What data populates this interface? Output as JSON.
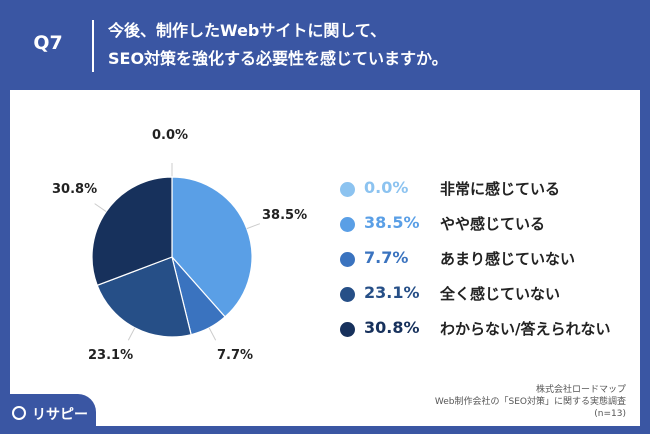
{
  "header": {
    "question_label": "Q7",
    "title_line1": "今後、制作したWebサイトに関して、",
    "title_line2": "SEO対策を強化する必要性を感じていますか。"
  },
  "chart_data": {
    "type": "pie",
    "title": "",
    "categories": [
      "非常に感じている",
      "やや感じている",
      "あまり感じていない",
      "全く感じていない",
      "わからない/答えられない"
    ],
    "values": [
      0.0,
      38.5,
      7.7,
      23.1,
      30.8
    ],
    "value_labels": [
      "0.0%",
      "38.5%",
      "7.7%",
      "23.1%",
      "30.8%"
    ],
    "colors": [
      "#8cc3f0",
      "#5a9fe6",
      "#3a73bf",
      "#264f87",
      "#17315c"
    ],
    "legend_position": "right"
  },
  "source": {
    "line1": "株式会社ロードマップ",
    "line2": "Web制作会社の「SEO対策」に関する実態調査",
    "line3": "(n=13)"
  },
  "logo": {
    "text": "リサピー"
  }
}
